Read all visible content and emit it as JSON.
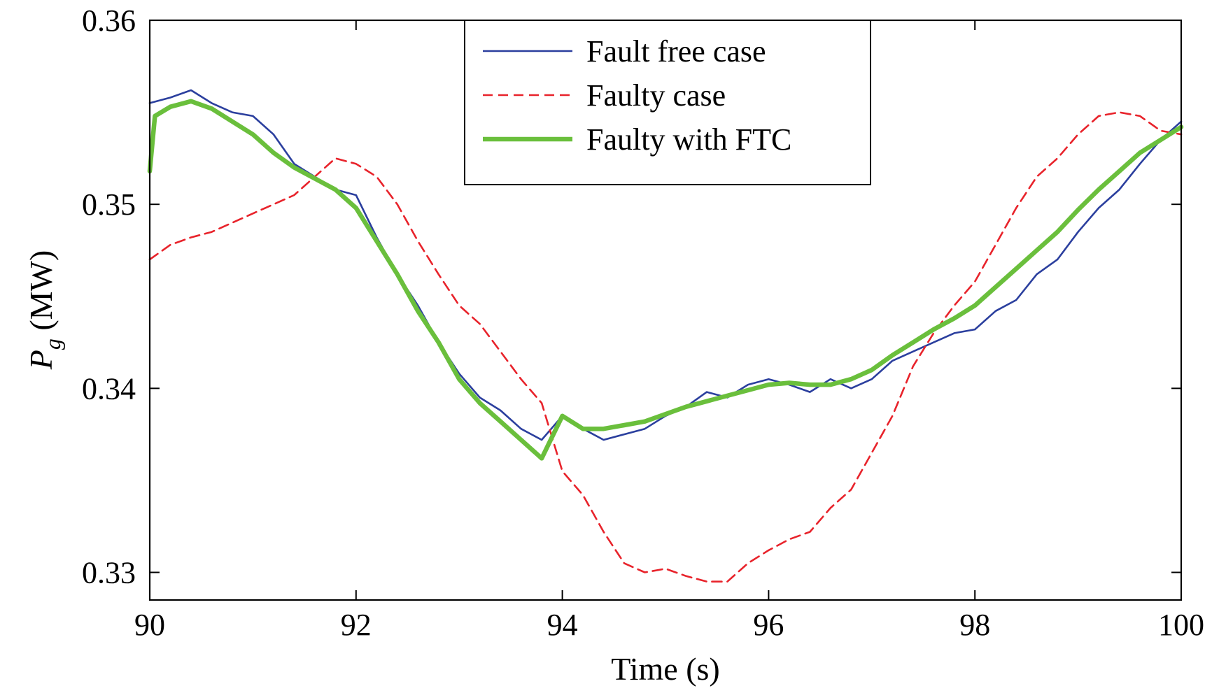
{
  "chart_data": {
    "type": "line",
    "xlabel": "Time (s)",
    "ylabel_main": "P",
    "ylabel_sub": "g",
    "ylabel_unit": " (MW)",
    "xlim": [
      90,
      100
    ],
    "ylim": [
      0.3285,
      0.36
    ],
    "xticks": [
      90,
      92,
      94,
      96,
      98,
      100
    ],
    "xtick_labels": [
      "90",
      "92",
      "94",
      "96",
      "98",
      "100"
    ],
    "yticks": [
      0.33,
      0.34,
      0.35,
      0.36
    ],
    "ytick_labels": [
      "0.33",
      "0.34",
      "0.35",
      "0.36"
    ],
    "grid": false,
    "legend_position": "top-center",
    "series": [
      {
        "name": "Fault free case",
        "color": "#2b3f9e",
        "style": "solid",
        "x": [
          90.0,
          90.2,
          90.4,
          90.6,
          90.8,
          91.0,
          91.2,
          91.4,
          91.6,
          91.8,
          92.0,
          92.2,
          92.4,
          92.6,
          92.8,
          93.0,
          93.2,
          93.4,
          93.6,
          93.8,
          94.0,
          94.2,
          94.4,
          94.6,
          94.8,
          95.0,
          95.2,
          95.4,
          95.6,
          95.8,
          96.0,
          96.2,
          96.4,
          96.6,
          96.8,
          97.0,
          97.2,
          97.4,
          97.6,
          97.8,
          98.0,
          98.2,
          98.4,
          98.6,
          98.8,
          99.0,
          99.2,
          99.4,
          99.6,
          99.8,
          100.0
        ],
        "y": [
          0.3555,
          0.3558,
          0.3562,
          0.3555,
          0.355,
          0.3548,
          0.3538,
          0.3522,
          0.3515,
          0.3508,
          0.3505,
          0.3482,
          0.3462,
          0.3445,
          0.3425,
          0.3408,
          0.3395,
          0.3388,
          0.3378,
          0.3372,
          0.3385,
          0.3378,
          0.3372,
          0.3375,
          0.3378,
          0.3385,
          0.339,
          0.3398,
          0.3395,
          0.3402,
          0.3405,
          0.3402,
          0.3398,
          0.3405,
          0.34,
          0.3405,
          0.3415,
          0.342,
          0.3425,
          0.343,
          0.3432,
          0.3442,
          0.3448,
          0.3462,
          0.347,
          0.3485,
          0.3498,
          0.3508,
          0.3522,
          0.3535,
          0.3545
        ]
      },
      {
        "name": "Faulty case",
        "color": "#e8232b",
        "style": "dashed",
        "x": [
          90.0,
          90.2,
          90.4,
          90.6,
          90.8,
          91.0,
          91.2,
          91.4,
          91.6,
          91.8,
          92.0,
          92.2,
          92.4,
          92.6,
          92.8,
          93.0,
          93.2,
          93.4,
          93.6,
          93.8,
          94.0,
          94.2,
          94.4,
          94.6,
          94.8,
          95.0,
          95.2,
          95.4,
          95.6,
          95.8,
          96.0,
          96.2,
          96.4,
          96.6,
          96.8,
          97.0,
          97.2,
          97.4,
          97.6,
          97.8,
          98.0,
          98.2,
          98.4,
          98.6,
          98.8,
          99.0,
          99.2,
          99.4,
          99.6,
          99.8,
          100.0
        ],
        "y": [
          0.347,
          0.3478,
          0.3482,
          0.3485,
          0.349,
          0.3495,
          0.35,
          0.3505,
          0.3515,
          0.3525,
          0.3522,
          0.3515,
          0.35,
          0.348,
          0.3462,
          0.3445,
          0.3435,
          0.342,
          0.3405,
          0.3392,
          0.3355,
          0.3342,
          0.3322,
          0.3305,
          0.33,
          0.3302,
          0.3298,
          0.3295,
          0.3295,
          0.3305,
          0.3312,
          0.3318,
          0.3322,
          0.3335,
          0.3345,
          0.3365,
          0.3385,
          0.3412,
          0.343,
          0.3445,
          0.3458,
          0.3478,
          0.3498,
          0.3515,
          0.3525,
          0.3538,
          0.3548,
          0.355,
          0.3548,
          0.354,
          0.3538
        ]
      },
      {
        "name": "Faulty with FTC",
        "color": "#6abf3c",
        "style": "solid-thick",
        "x": [
          90.0,
          90.05,
          90.2,
          90.4,
          90.6,
          90.8,
          91.0,
          91.2,
          91.4,
          91.6,
          91.8,
          92.0,
          92.2,
          92.4,
          92.6,
          92.8,
          93.0,
          93.2,
          93.4,
          93.6,
          93.8,
          94.0,
          94.2,
          94.4,
          94.6,
          94.8,
          95.0,
          95.2,
          95.4,
          95.6,
          95.8,
          96.0,
          96.2,
          96.4,
          96.6,
          96.8,
          97.0,
          97.2,
          97.4,
          97.6,
          97.8,
          98.0,
          98.2,
          98.4,
          98.6,
          98.8,
          99.0,
          99.2,
          99.4,
          99.6,
          99.8,
          100.0
        ],
        "y": [
          0.3518,
          0.3548,
          0.3553,
          0.3556,
          0.3552,
          0.3545,
          0.3538,
          0.3528,
          0.352,
          0.3514,
          0.3508,
          0.3498,
          0.348,
          0.3462,
          0.3442,
          0.3425,
          0.3405,
          0.3392,
          0.3382,
          0.3372,
          0.3362,
          0.3385,
          0.3378,
          0.3378,
          0.338,
          0.3382,
          0.3386,
          0.339,
          0.3393,
          0.3396,
          0.3399,
          0.3402,
          0.3403,
          0.3402,
          0.3402,
          0.3405,
          0.341,
          0.3418,
          0.3425,
          0.3432,
          0.3438,
          0.3445,
          0.3455,
          0.3465,
          0.3475,
          0.3485,
          0.3497,
          0.3508,
          0.3518,
          0.3528,
          0.3535,
          0.3542
        ]
      }
    ]
  }
}
